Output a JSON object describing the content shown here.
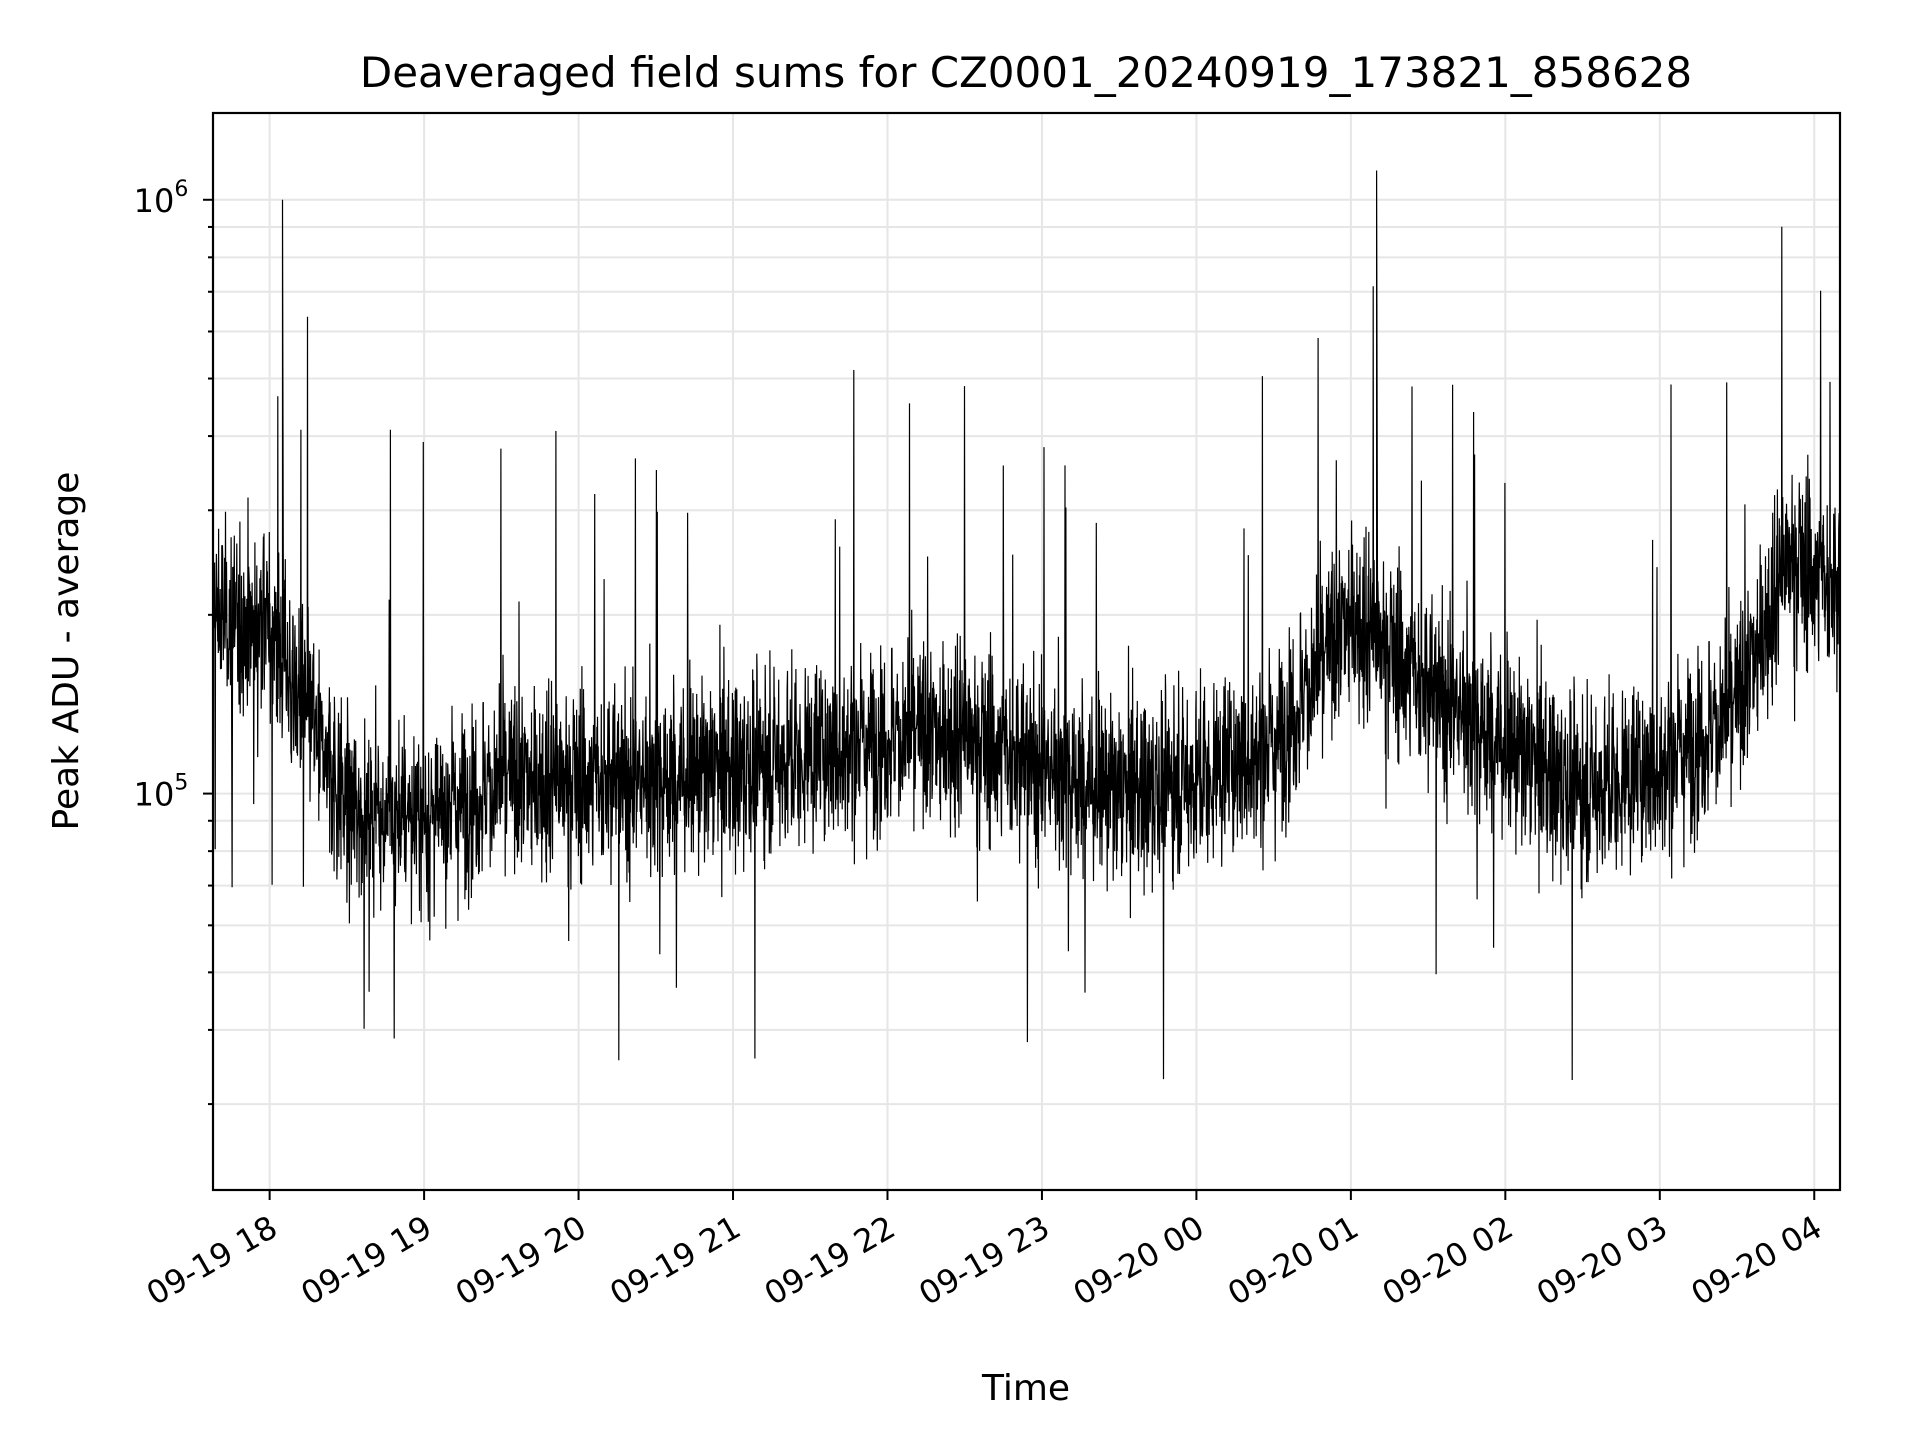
{
  "chart_data": {
    "type": "line",
    "title": "Deaveraged field sums for CZ0001_20240919_173821_858628",
    "xlabel": "Time",
    "ylabel": "Peak ADU - average",
    "yscale": "log",
    "ylim": [
      21500,
      1400000
    ],
    "xlim": [
      "2024-09-19 17:38",
      "2024-09-20 04:10"
    ],
    "grid": true,
    "line_color": "#000000",
    "x_ticks": [
      "09-19 18",
      "09-19 19",
      "09-19 20",
      "09-19 21",
      "09-19 22",
      "09-19 23",
      "09-20 00",
      "09-20 01",
      "09-20 02",
      "09-20 03",
      "09-20 04"
    ],
    "y_ticks": [
      {
        "value": 100000,
        "base": "10",
        "exp": "5"
      },
      {
        "value": 1000000,
        "base": "10",
        "exp": "6"
      }
    ],
    "series": [
      {
        "x": [
          "2024-09-19 17:38",
          "2024-09-19 18:00",
          "2024-09-19 18:05",
          "2024-09-19 18:30",
          "2024-09-19 19:00",
          "2024-09-19 19:30",
          "2024-09-19 20:00",
          "2024-09-19 20:30",
          "2024-09-19 21:00",
          "2024-09-19 21:30",
          "2024-09-19 22:00",
          "2024-09-19 22:30",
          "2024-09-19 23:00",
          "2024-09-19 23:30",
          "2024-09-20 00:00",
          "2024-09-20 00:30",
          "2024-09-20 01:00",
          "2024-09-20 01:10",
          "2024-09-20 01:30",
          "2024-09-20 02:00",
          "2024-09-20 02:30",
          "2024-09-20 03:00",
          "2024-09-20 03:30",
          "2024-09-20 03:50",
          "2024-09-20 04:10"
        ],
        "y": [
          200000,
          190000,
          1000000,
          95000,
          90000,
          105000,
          105000,
          105000,
          110000,
          115000,
          125000,
          125000,
          110000,
          100000,
          105000,
          120000,
          200000,
          1120000,
          150000,
          120000,
          100000,
          110000,
          140000,
          250000,
          220000
        ]
      }
    ]
  }
}
